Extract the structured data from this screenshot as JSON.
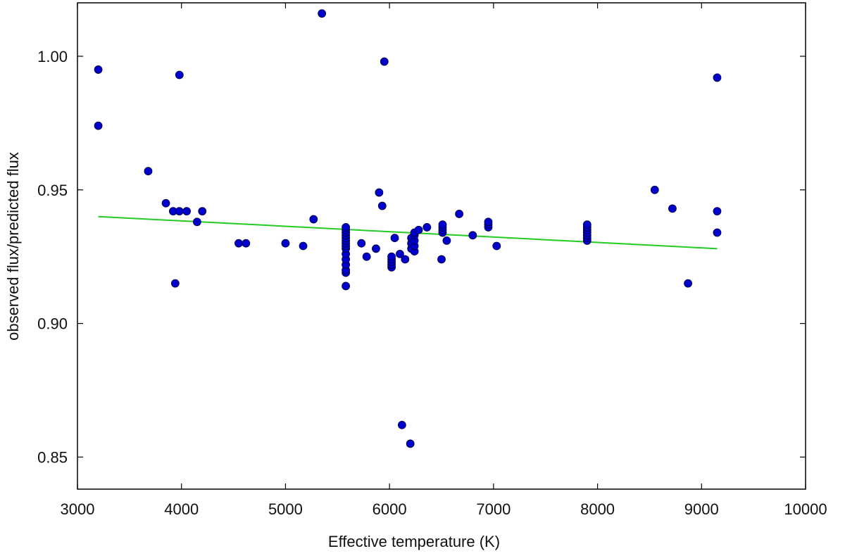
{
  "chart_data": {
    "type": "scatter",
    "xlabel": "Effective temperature (K)",
    "ylabel": "observed flux/predicted flux",
    "xlim": [
      3000,
      10000
    ],
    "ylim": [
      0.838,
      1.02
    ],
    "xticks": [
      3000,
      4000,
      5000,
      6000,
      7000,
      8000,
      9000,
      10000
    ],
    "xtick_labels": [
      "3000",
      "4000",
      "5000",
      "6000",
      "7000",
      "8000",
      "9000",
      "10000"
    ],
    "yticks": [
      0.85,
      0.9,
      0.95,
      1.0
    ],
    "ytick_labels": [
      "0.85",
      "0.90",
      "0.95",
      "1.00"
    ],
    "grid": false,
    "legend": "none",
    "point_color": "#0000cc",
    "fit_color": "#22cc22",
    "series": [
      {
        "values": [
          [
            3200,
            0.995
          ],
          [
            3200,
            0.974
          ],
          [
            3680,
            0.957
          ],
          [
            3850,
            0.945
          ],
          [
            3920,
            0.942
          ],
          [
            3980,
            0.942
          ],
          [
            4050,
            0.942
          ],
          [
            3980,
            0.993
          ],
          [
            3940,
            0.915
          ],
          [
            4150,
            0.938
          ],
          [
            4200,
            0.942
          ],
          [
            4550,
            0.93
          ],
          [
            4620,
            0.93
          ],
          [
            5000,
            0.93
          ],
          [
            5170,
            0.929
          ],
          [
            5270,
            0.939
          ],
          [
            5350,
            1.016
          ],
          [
            5580,
            0.914
          ],
          [
            5580,
            0.919
          ],
          [
            5580,
            0.92
          ],
          [
            5580,
            0.922
          ],
          [
            5580,
            0.924
          ],
          [
            5580,
            0.926
          ],
          [
            5580,
            0.928
          ],
          [
            5580,
            0.929
          ],
          [
            5580,
            0.93
          ],
          [
            5580,
            0.931
          ],
          [
            5580,
            0.932
          ],
          [
            5580,
            0.933
          ],
          [
            5580,
            0.934
          ],
          [
            5580,
            0.935
          ],
          [
            5580,
            0.936
          ],
          [
            5730,
            0.93
          ],
          [
            5780,
            0.925
          ],
          [
            5870,
            0.928
          ],
          [
            5900,
            0.949
          ],
          [
            5930,
            0.944
          ],
          [
            5950,
            0.998
          ],
          [
            6020,
            0.921
          ],
          [
            6020,
            0.922
          ],
          [
            6020,
            0.923
          ],
          [
            6020,
            0.924
          ],
          [
            6020,
            0.925
          ],
          [
            6050,
            0.932
          ],
          [
            6100,
            0.926
          ],
          [
            6120,
            0.862
          ],
          [
            6150,
            0.924
          ],
          [
            6200,
            0.855
          ],
          [
            6210,
            0.928
          ],
          [
            6210,
            0.93
          ],
          [
            6210,
            0.932
          ],
          [
            6240,
            0.927
          ],
          [
            6240,
            0.929
          ],
          [
            6240,
            0.931
          ],
          [
            6240,
            0.933
          ],
          [
            6240,
            0.934
          ],
          [
            6280,
            0.935
          ],
          [
            6360,
            0.936
          ],
          [
            6500,
            0.924
          ],
          [
            6510,
            0.934
          ],
          [
            6510,
            0.935
          ],
          [
            6510,
            0.936
          ],
          [
            6510,
            0.937
          ],
          [
            6550,
            0.931
          ],
          [
            6670,
            0.941
          ],
          [
            6800,
            0.933
          ],
          [
            6950,
            0.936
          ],
          [
            6950,
            0.937
          ],
          [
            6950,
            0.938
          ],
          [
            7030,
            0.929
          ],
          [
            7900,
            0.931
          ],
          [
            7900,
            0.932
          ],
          [
            7900,
            0.933
          ],
          [
            7900,
            0.934
          ],
          [
            7900,
            0.935
          ],
          [
            7900,
            0.936
          ],
          [
            7900,
            0.937
          ],
          [
            8550,
            0.95
          ],
          [
            8720,
            0.943
          ],
          [
            8870,
            0.915
          ],
          [
            9150,
            0.992
          ],
          [
            9150,
            0.942
          ],
          [
            9150,
            0.934
          ]
        ]
      }
    ],
    "fit_line": {
      "x": [
        3200,
        9150
      ],
      "y": [
        0.94,
        0.928
      ]
    }
  }
}
